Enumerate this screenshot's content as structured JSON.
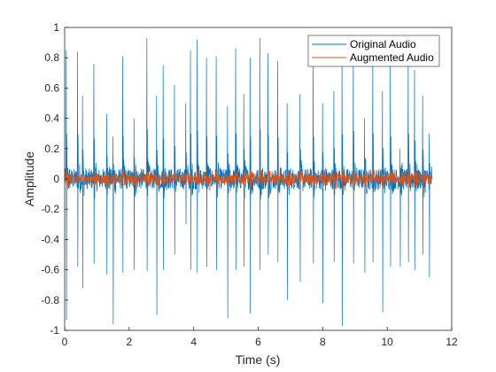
{
  "chart_data": {
    "type": "line",
    "title": "",
    "xlabel": "Time (s)",
    "ylabel": "Amplitude",
    "xlim": [
      0,
      12
    ],
    "ylim": [
      -1,
      1
    ],
    "xticks": [
      0,
      2,
      4,
      6,
      8,
      10,
      12
    ],
    "yticks": [
      -1,
      -0.8,
      -0.6,
      -0.4,
      -0.2,
      0,
      0.2,
      0.4,
      0.6,
      0.8,
      1
    ],
    "xtick_labels": [
      "0",
      "2",
      "4",
      "6",
      "8",
      "10",
      "12"
    ],
    "ytick_labels": [
      "-1",
      "-0.8",
      "-0.6",
      "-0.4",
      "-0.2",
      "0",
      "0.2",
      "0.4",
      "0.6",
      "0.8",
      "1"
    ],
    "grid": false,
    "legend_position": "top-right",
    "signal_duration": 11.4,
    "series": [
      {
        "name": "Original Audio",
        "color": "#0072BD",
        "noise_amplitude": 0.07,
        "peaks": [
          {
            "t": 0.05,
            "max": 0.85,
            "min": -0.93
          },
          {
            "t": 0.4,
            "max": 0.84,
            "min": -0.58
          },
          {
            "t": 0.55,
            "max": 0.55,
            "min": -0.72
          },
          {
            "t": 0.9,
            "max": 0.76,
            "min": -0.56
          },
          {
            "t": 1.3,
            "max": 0.43,
            "min": -0.63
          },
          {
            "t": 1.5,
            "max": 0.28,
            "min": -0.96
          },
          {
            "t": 1.8,
            "max": 0.81,
            "min": -0.62
          },
          {
            "t": 2.15,
            "max": 0.4,
            "min": -0.6
          },
          {
            "t": 2.55,
            "max": 0.93,
            "min": -0.61
          },
          {
            "t": 2.85,
            "max": 0.55,
            "min": -0.9
          },
          {
            "t": 3.05,
            "max": 0.75,
            "min": -0.6
          },
          {
            "t": 3.4,
            "max": 0.62,
            "min": -0.5
          },
          {
            "t": 3.75,
            "max": 0.5,
            "min": -0.3
          },
          {
            "t": 3.9,
            "max": 0.85,
            "min": -0.6
          },
          {
            "t": 4.1,
            "max": 0.92,
            "min": -0.62
          },
          {
            "t": 4.4,
            "max": 0.8,
            "min": -0.58
          },
          {
            "t": 4.7,
            "max": 0.81,
            "min": -0.6
          },
          {
            "t": 5.05,
            "max": 0.48,
            "min": -0.92
          },
          {
            "t": 5.3,
            "max": 0.86,
            "min": -0.6
          },
          {
            "t": 5.55,
            "max": 0.56,
            "min": -0.58
          },
          {
            "t": 5.75,
            "max": 0.8,
            "min": -0.89
          },
          {
            "t": 6.05,
            "max": 0.93,
            "min": -0.6
          },
          {
            "t": 6.3,
            "max": 0.83,
            "min": -0.5
          },
          {
            "t": 6.6,
            "max": 0.78,
            "min": -0.55
          },
          {
            "t": 6.9,
            "max": 0.5,
            "min": -0.8
          },
          {
            "t": 7.3,
            "max": 0.56,
            "min": -0.68
          },
          {
            "t": 7.7,
            "max": 0.8,
            "min": -0.56
          },
          {
            "t": 8.0,
            "max": 0.5,
            "min": -0.82
          },
          {
            "t": 8.35,
            "max": 0.58,
            "min": -0.55
          },
          {
            "t": 8.6,
            "max": 0.84,
            "min": -0.97
          },
          {
            "t": 8.95,
            "max": 0.9,
            "min": -0.56
          },
          {
            "t": 9.3,
            "max": 0.4,
            "min": -0.62
          },
          {
            "t": 9.55,
            "max": 0.86,
            "min": -0.55
          },
          {
            "t": 9.85,
            "max": 0.58,
            "min": -0.88
          },
          {
            "t": 10.1,
            "max": 0.8,
            "min": -0.58
          },
          {
            "t": 10.4,
            "max": 0.2,
            "min": -0.58
          },
          {
            "t": 10.65,
            "max": 0.85,
            "min": -0.55
          },
          {
            "t": 10.85,
            "max": 0.72,
            "min": -0.6
          },
          {
            "t": 11.1,
            "max": 0.55,
            "min": -0.5
          },
          {
            "t": 11.3,
            "max": 0.3,
            "min": -0.65
          }
        ]
      },
      {
        "name": "Augmented Audio",
        "color": "#D95319",
        "noise_amplitude": 0.035,
        "peak_scale": 0.07
      }
    ]
  }
}
